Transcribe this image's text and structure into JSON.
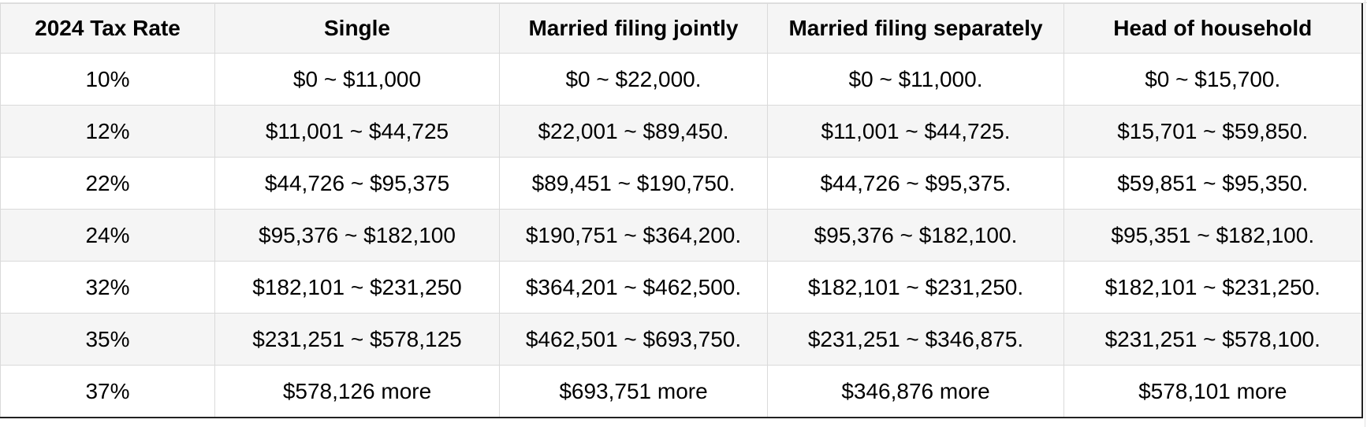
{
  "table": {
    "headers": [
      "2024 Tax Rate",
      "Single",
      "Married filing jointly",
      "Married filing separately",
      "Head of household"
    ],
    "rows": [
      [
        "10%",
        "$0 ~ $11,000",
        "$0 ~ $22,000.",
        "$0 ~ $11,000.",
        "$0 ~ $15,700."
      ],
      [
        "12%",
        "$11,001 ~ $44,725",
        "$22,001 ~ $89,450.",
        "$11,001 ~ $44,725.",
        "$15,701 ~ $59,850."
      ],
      [
        "22%",
        "$44,726 ~ $95,375",
        "$89,451 ~ $190,750.",
        "$44,726 ~ $95,375.",
        "$59,851 ~ $95,350."
      ],
      [
        "24%",
        "$95,376 ~ $182,100",
        "$190,751 ~ $364,200.",
        "$95,376 ~ $182,100.",
        "$95,351 ~ $182,100."
      ],
      [
        "32%",
        "$182,101 ~ $231,250",
        "$364,201 ~ $462,500.",
        "$182,101 ~ $231,250.",
        "$182,101 ~ $231,250."
      ],
      [
        "35%",
        "$231,251 ~ $578,125",
        "$462,501 ~ $693,750.",
        "$231,251 ~ $346,875.",
        "$231,251 ~ $578,100."
      ],
      [
        "37%",
        "$578,126 more",
        "$693,751 more",
        "$346,876 more",
        "$578,101 more"
      ]
    ]
  }
}
